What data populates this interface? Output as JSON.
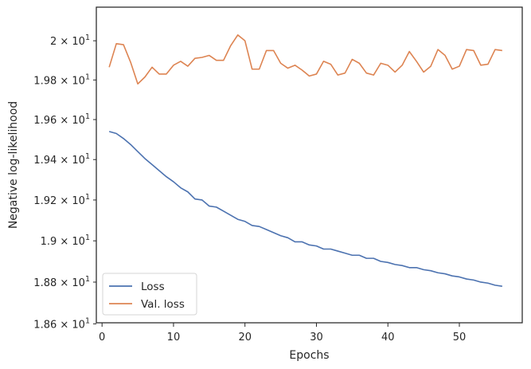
{
  "chart_data": {
    "type": "line",
    "xlabel": "Epochs",
    "ylabel": "Negative log-likelihood",
    "xlim": [
      -0.8,
      58.8
    ],
    "ylim": [
      18.605,
      20.173
    ],
    "log_y": true,
    "grid": false,
    "legend_position": "lower-left",
    "x_ticks": [
      0,
      10,
      20,
      30,
      40,
      50
    ],
    "x_tick_labels": [
      "0",
      "10",
      "20",
      "30",
      "40",
      "50"
    ],
    "y_ticks": [
      18.6,
      18.8,
      19.0,
      19.2,
      19.4,
      19.6,
      19.8,
      20.0
    ],
    "y_tick_labels": [
      {
        "mantissa": "1.86",
        "base": "10",
        "exp": "1"
      },
      {
        "mantissa": "1.88",
        "base": "10",
        "exp": "1"
      },
      {
        "mantissa": "1.9",
        "base": "10",
        "exp": "1"
      },
      {
        "mantissa": "1.92",
        "base": "10",
        "exp": "1"
      },
      {
        "mantissa": "1.94",
        "base": "10",
        "exp": "1"
      },
      {
        "mantissa": "1.96",
        "base": "10",
        "exp": "1"
      },
      {
        "mantissa": "1.98",
        "base": "10",
        "exp": "1"
      },
      {
        "mantissa": "2",
        "base": "10",
        "exp": "1"
      }
    ],
    "times": "×",
    "series": [
      {
        "name": "Loss",
        "color": "#4c72b0",
        "x": [
          1,
          2,
          3,
          4,
          5,
          6,
          7,
          8,
          9,
          10,
          11,
          12,
          13,
          14,
          15,
          16,
          17,
          18,
          19,
          20,
          21,
          22,
          23,
          24,
          25,
          26,
          27,
          28,
          29,
          30,
          31,
          32,
          33,
          34,
          35,
          36,
          37,
          38,
          39,
          40,
          41,
          42,
          43,
          44,
          45,
          46,
          47,
          48,
          49,
          50,
          51,
          52,
          53,
          54,
          55,
          56
        ],
        "values": [
          19.54,
          19.53,
          19.505,
          19.475,
          19.44,
          19.405,
          19.375,
          19.345,
          19.315,
          19.29,
          19.26,
          19.24,
          19.205,
          19.2,
          19.17,
          19.165,
          19.145,
          19.125,
          19.105,
          19.095,
          19.075,
          19.07,
          19.055,
          19.04,
          19.025,
          19.015,
          18.995,
          18.995,
          18.98,
          18.975,
          18.96,
          18.96,
          18.95,
          18.94,
          18.93,
          18.93,
          18.915,
          18.915,
          18.9,
          18.895,
          18.885,
          18.88,
          18.87,
          18.87,
          18.86,
          18.855,
          18.845,
          18.84,
          18.83,
          18.825,
          18.815,
          18.81,
          18.8,
          18.795,
          18.785,
          18.78
        ]
      },
      {
        "name": "Val. loss",
        "color": "#dd8452",
        "x": [
          1,
          2,
          3,
          4,
          5,
          6,
          7,
          8,
          9,
          10,
          11,
          12,
          13,
          14,
          15,
          16,
          17,
          18,
          19,
          20,
          21,
          22,
          23,
          24,
          25,
          26,
          27,
          28,
          29,
          30,
          31,
          32,
          33,
          34,
          35,
          36,
          37,
          38,
          39,
          40,
          41,
          42,
          43,
          44,
          45,
          46,
          47,
          48,
          49,
          50,
          51,
          52,
          53,
          54,
          55,
          56
        ],
        "values": [
          19.865,
          19.985,
          19.98,
          19.89,
          19.78,
          19.815,
          19.865,
          19.83,
          19.83,
          19.875,
          19.895,
          19.87,
          19.91,
          19.915,
          19.925,
          19.9,
          19.9,
          19.975,
          20.03,
          20.0,
          19.855,
          19.855,
          19.95,
          19.95,
          19.885,
          19.86,
          19.875,
          19.85,
          19.82,
          19.83,
          19.895,
          19.88,
          19.825,
          19.835,
          19.905,
          19.885,
          19.835,
          19.825,
          19.885,
          19.875,
          19.84,
          19.875,
          19.945,
          19.895,
          19.84,
          19.87,
          19.955,
          19.925,
          19.855,
          19.87,
          19.955,
          19.95,
          19.875,
          19.88,
          19.955,
          19.95
        ]
      }
    ]
  }
}
